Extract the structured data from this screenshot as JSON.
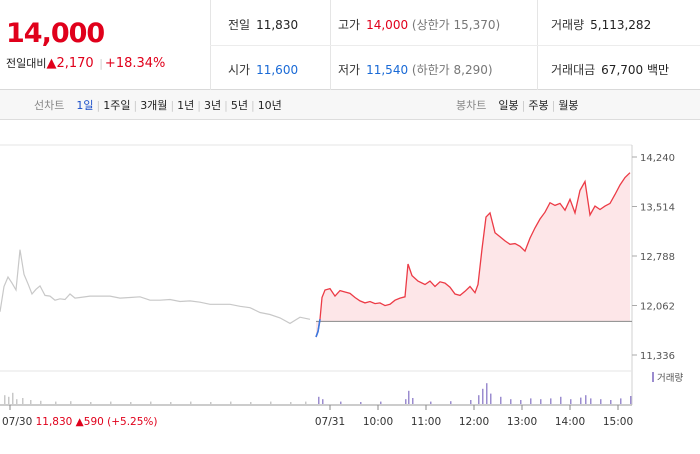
{
  "summary": {
    "price": "14,000",
    "change_label": "전일대비",
    "change_arrow": "▲",
    "change_value": "2,170",
    "change_pct": "+18.34%"
  },
  "stats": {
    "prev_label": "전일",
    "prev_value": "11,830",
    "open_label": "시가",
    "open_value": "11,600",
    "high_label": "고가",
    "high_value": "14,000",
    "upper_limit": "(상한가 15,370)",
    "low_label": "저가",
    "low_value": "11,540",
    "lower_limit": "(하한가 8,290)",
    "volume_label": "거래량",
    "volume_value": "5,113,282",
    "amount_label": "거래대금",
    "amount_value": "67,700 백만"
  },
  "toolbar": {
    "line_label": "선차트",
    "line_tabs": [
      "1일",
      "1주일",
      "3개월",
      "1년",
      "3년",
      "5년",
      "10년"
    ],
    "active_tab": "1일",
    "candle_label": "봉차트",
    "candle_tabs": [
      "일봉",
      "주봉",
      "월봉"
    ]
  },
  "chart_data": {
    "type": "line",
    "y_ticks": [
      "14,240",
      "13,514",
      "12,788",
      "12,062",
      "11,336"
    ],
    "ylim": [
      11336,
      14240
    ],
    "baseline": 11830,
    "x_labels": [
      "07/30",
      "07/31",
      "10:00",
      "11:00",
      "12:00",
      "13:00",
      "14:00",
      "15:00"
    ],
    "prev_day_note": {
      "date": "07/30",
      "price": "11,830",
      "arrow": "▲",
      "change": "590",
      "pct": "(+5.25%)"
    },
    "volume_legend": "거래량",
    "prev_series": [
      [
        0,
        11970
      ],
      [
        4,
        12340
      ],
      [
        8,
        12480
      ],
      [
        12,
        12390
      ],
      [
        16,
        12290
      ],
      [
        20,
        12880
      ],
      [
        24,
        12520
      ],
      [
        28,
        12380
      ],
      [
        32,
        12230
      ],
      [
        36,
        12300
      ],
      [
        40,
        12350
      ],
      [
        45,
        12210
      ],
      [
        50,
        12200
      ],
      [
        55,
        12140
      ],
      [
        60,
        12160
      ],
      [
        65,
        12150
      ],
      [
        70,
        12230
      ],
      [
        75,
        12170
      ],
      [
        80,
        12180
      ],
      [
        90,
        12200
      ],
      [
        100,
        12200
      ],
      [
        110,
        12200
      ],
      [
        120,
        12170
      ],
      [
        130,
        12180
      ],
      [
        140,
        12190
      ],
      [
        150,
        12140
      ],
      [
        160,
        12140
      ],
      [
        170,
        12150
      ],
      [
        180,
        12120
      ],
      [
        190,
        12130
      ],
      [
        200,
        12110
      ],
      [
        210,
        12080
      ],
      [
        220,
        12080
      ],
      [
        230,
        12080
      ],
      [
        240,
        12050
      ],
      [
        250,
        12030
      ],
      [
        260,
        11960
      ],
      [
        270,
        11930
      ],
      [
        280,
        11880
      ],
      [
        290,
        11800
      ],
      [
        300,
        11890
      ],
      [
        310,
        11860
      ]
    ],
    "today_series": [
      [
        316,
        11600
      ],
      [
        318,
        11680
      ],
      [
        320,
        11860
      ],
      [
        322,
        12180
      ],
      [
        325,
        12290
      ],
      [
        330,
        12310
      ],
      [
        335,
        12200
      ],
      [
        340,
        12280
      ],
      [
        345,
        12260
      ],
      [
        350,
        12240
      ],
      [
        355,
        12180
      ],
      [
        360,
        12130
      ],
      [
        365,
        12100
      ],
      [
        370,
        12120
      ],
      [
        375,
        12090
      ],
      [
        380,
        12100
      ],
      [
        385,
        12060
      ],
      [
        390,
        12080
      ],
      [
        395,
        12140
      ],
      [
        400,
        12170
      ],
      [
        405,
        12190
      ],
      [
        408,
        12670
      ],
      [
        412,
        12500
      ],
      [
        418,
        12420
      ],
      [
        425,
        12370
      ],
      [
        430,
        12420
      ],
      [
        435,
        12340
      ],
      [
        440,
        12410
      ],
      [
        445,
        12390
      ],
      [
        450,
        12330
      ],
      [
        455,
        12230
      ],
      [
        460,
        12210
      ],
      [
        465,
        12270
      ],
      [
        470,
        12340
      ],
      [
        475,
        12250
      ],
      [
        478,
        12370
      ],
      [
        482,
        12890
      ],
      [
        486,
        13360
      ],
      [
        490,
        13420
      ],
      [
        495,
        13130
      ],
      [
        500,
        13070
      ],
      [
        505,
        13010
      ],
      [
        510,
        12960
      ],
      [
        515,
        12970
      ],
      [
        520,
        12930
      ],
      [
        525,
        12860
      ],
      [
        530,
        13050
      ],
      [
        535,
        13200
      ],
      [
        540,
        13330
      ],
      [
        545,
        13430
      ],
      [
        550,
        13570
      ],
      [
        555,
        13530
      ],
      [
        560,
        13560
      ],
      [
        565,
        13460
      ],
      [
        570,
        13620
      ],
      [
        575,
        13420
      ],
      [
        580,
        13750
      ],
      [
        585,
        13880
      ],
      [
        590,
        13390
      ],
      [
        595,
        13520
      ],
      [
        600,
        13470
      ],
      [
        605,
        13520
      ],
      [
        610,
        13560
      ],
      [
        615,
        13690
      ],
      [
        620,
        13830
      ],
      [
        625,
        13940
      ],
      [
        630,
        14010
      ]
    ],
    "volume_bars": [
      [
        4,
        0.22
      ],
      [
        8,
        0.18
      ],
      [
        12,
        0.28
      ],
      [
        16,
        0.12
      ],
      [
        22,
        0.15
      ],
      [
        30,
        0.1
      ],
      [
        40,
        0.08
      ],
      [
        55,
        0.06
      ],
      [
        70,
        0.07
      ],
      [
        90,
        0.05
      ],
      [
        110,
        0.06
      ],
      [
        130,
        0.05
      ],
      [
        150,
        0.06
      ],
      [
        170,
        0.05
      ],
      [
        190,
        0.06
      ],
      [
        210,
        0.05
      ],
      [
        230,
        0.06
      ],
      [
        250,
        0.05
      ],
      [
        270,
        0.06
      ],
      [
        290,
        0.05
      ],
      [
        305,
        0.06
      ],
      [
        318,
        0.18
      ],
      [
        322,
        0.12
      ],
      [
        340,
        0.06
      ],
      [
        360,
        0.05
      ],
      [
        380,
        0.06
      ],
      [
        405,
        0.12
      ],
      [
        408,
        0.33
      ],
      [
        412,
        0.15
      ],
      [
        430,
        0.06
      ],
      [
        450,
        0.07
      ],
      [
        470,
        0.1
      ],
      [
        478,
        0.22
      ],
      [
        482,
        0.38
      ],
      [
        486,
        0.52
      ],
      [
        490,
        0.26
      ],
      [
        500,
        0.18
      ],
      [
        510,
        0.12
      ],
      [
        520,
        0.1
      ],
      [
        530,
        0.14
      ],
      [
        540,
        0.12
      ],
      [
        550,
        0.14
      ],
      [
        560,
        0.18
      ],
      [
        570,
        0.12
      ],
      [
        580,
        0.16
      ],
      [
        585,
        0.22
      ],
      [
        590,
        0.14
      ],
      [
        600,
        0.12
      ],
      [
        610,
        0.1
      ],
      [
        620,
        0.14
      ],
      [
        630,
        0.2
      ]
    ]
  }
}
